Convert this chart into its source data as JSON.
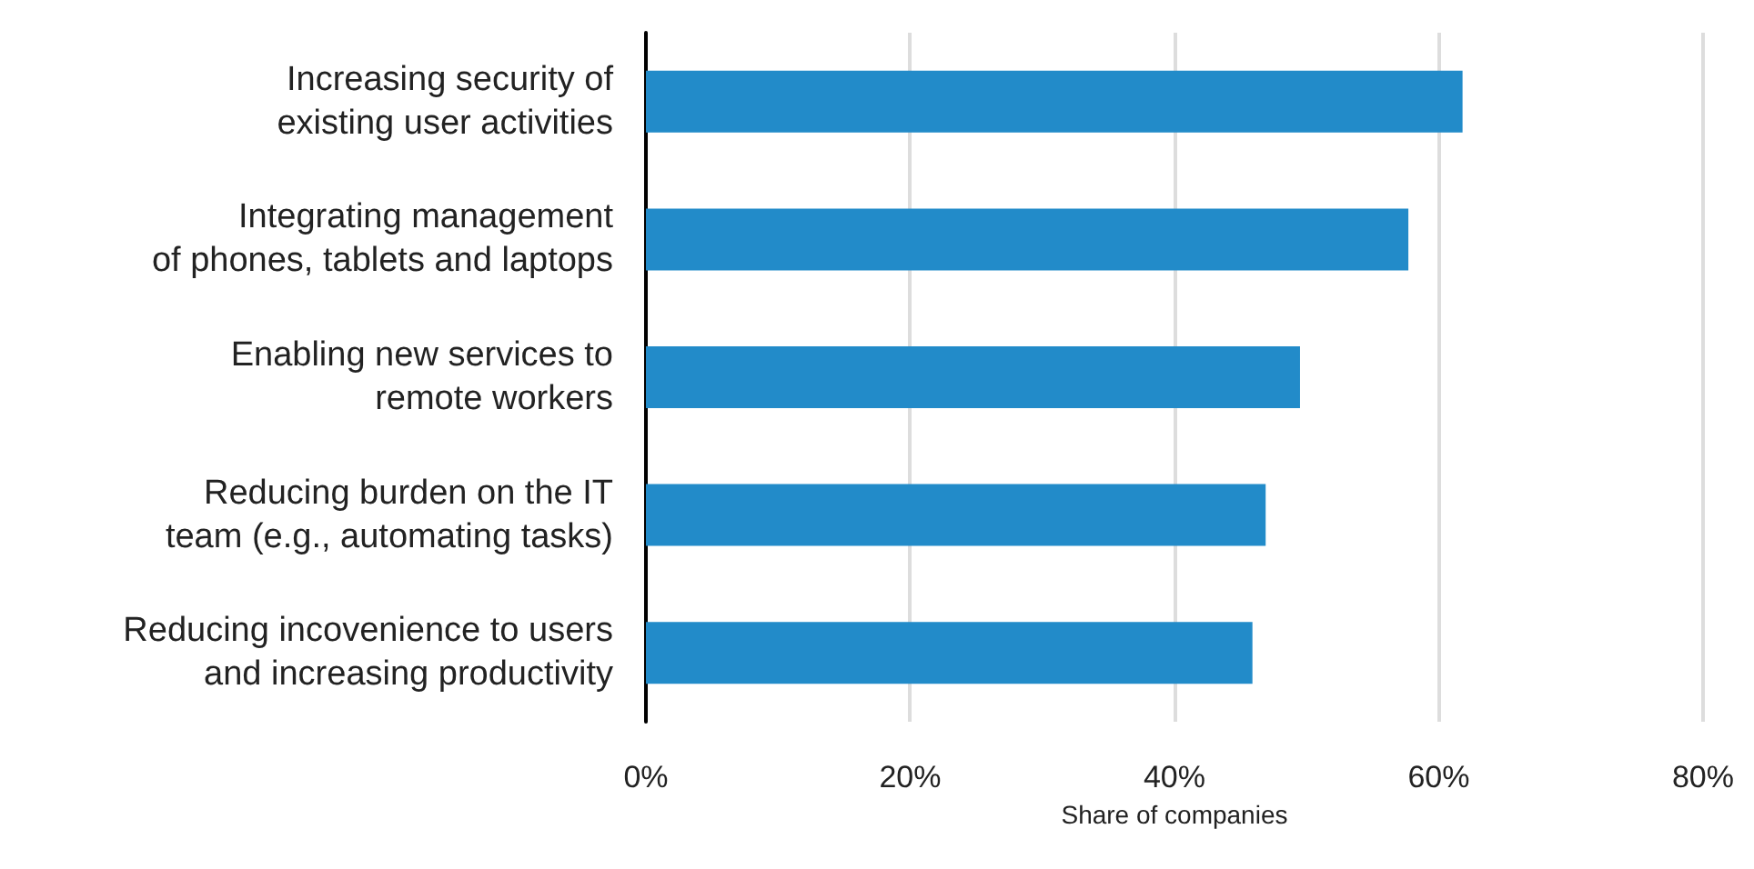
{
  "chart_data": {
    "type": "bar",
    "orientation": "horizontal",
    "xlabel": "Share of companies",
    "categories": [
      "Increasing security of\nexisting user activities",
      "Integrating management\nof phones, tablets and laptops",
      "Enabling new services to\nremote workers",
      "Reducing burden on the IT\nteam (e.g., automating tasks)",
      "Reducing incovenience to users\nand increasing productivity"
    ],
    "values": [
      61.8,
      57.7,
      49.5,
      46.9,
      45.9
    ],
    "color": "#228bc9",
    "xlim": [
      0,
      80
    ],
    "xticks": [
      {
        "value": 0,
        "label": "0%"
      },
      {
        "value": 20,
        "label": "20%"
      },
      {
        "value": 40,
        "label": "40%"
      },
      {
        "value": 60,
        "label": "60%"
      },
      {
        "value": 80,
        "label": "80%"
      }
    ],
    "grid": "x"
  }
}
